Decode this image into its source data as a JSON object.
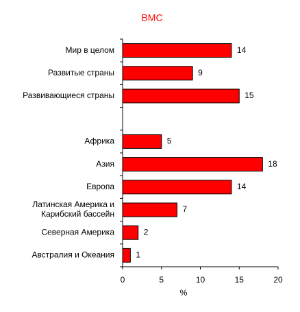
{
  "chart_data": {
    "type": "bar",
    "orientation": "horizontal",
    "title": "ВМС",
    "title_color": "#ff0000",
    "categories": [
      "Мир в целом",
      "Развитые страны",
      "Развивающиеся страны",
      null,
      "Африка",
      "Азия",
      "Европа",
      "Латинская Америка и\nКарибский бассейн",
      "Северная Америка",
      "Австралия и Океания"
    ],
    "values": [
      14,
      9,
      15,
      null,
      5,
      18,
      14,
      7,
      2,
      1
    ],
    "color": "#ff0000",
    "xlabel": "%",
    "xlim": [
      0,
      20
    ],
    "xticks": [
      0,
      5,
      10,
      15,
      20
    ],
    "grid": false
  }
}
